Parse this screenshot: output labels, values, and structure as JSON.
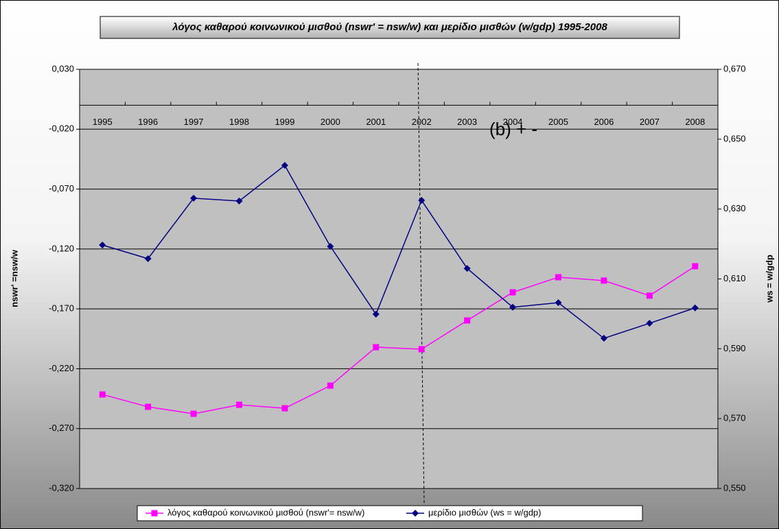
{
  "chart_data": {
    "type": "line",
    "title": "λόγος καθαρού κοινωνικού μισθού (nswr' = nsw/w) και μερίδιο μισθών (w/gdp) 1995-2008",
    "y_label": "nswr' =nsw/w",
    "y2_label": "ws = w/gdp",
    "annotation": "(b) + -",
    "categories": [
      "1995",
      "1996",
      "1997",
      "1998",
      "1999",
      "2000",
      "2001",
      "2002",
      "2003",
      "2004",
      "2005",
      "2006",
      "2007",
      "2008"
    ],
    "series": [
      {
        "name": "λόγος καθαρού κοινωνικού μισθού (nswr'= nsw/w)",
        "color": "#ff00ff",
        "marker": "square",
        "values": [
          -0.2415,
          -0.2518,
          -0.2576,
          -0.2501,
          -0.253,
          -0.2341,
          -0.202,
          -0.2037,
          -0.1797,
          -0.1562,
          -0.1436,
          -0.1464,
          -0.159,
          -0.1344
        ]
      },
      {
        "name": "μερίδιο μισθών (ws = w/gdp)",
        "color": "#000080",
        "marker": "diamond",
        "axis": "y2",
        "values": [
          0.6197,
          0.6158,
          0.6331,
          0.6323,
          0.6425,
          0.6193,
          0.5999,
          0.6325,
          0.613,
          0.6019,
          0.6032,
          0.593,
          0.5973,
          0.6017
        ]
      }
    ],
    "ylim": [
      -0.32,
      0.03
    ],
    "yticks": [
      {
        "value": 0.03,
        "label": "0,030"
      },
      {
        "value": -0.02,
        "label": "-0,020"
      },
      {
        "value": -0.07,
        "label": "-0,070"
      },
      {
        "value": -0.12,
        "label": "-0,120"
      },
      {
        "value": -0.17,
        "label": "-0,170"
      },
      {
        "value": -0.22,
        "label": "-0,220"
      },
      {
        "value": -0.27,
        "label": "-0,270"
      },
      {
        "value": -0.32,
        "label": "-0,320"
      }
    ],
    "y2lim": [
      0.55,
      0.67
    ],
    "y2ticks": [
      {
        "value": 0.67,
        "label": "0,670"
      },
      {
        "value": 0.65,
        "label": "0,650"
      },
      {
        "value": 0.63,
        "label": "0,630"
      },
      {
        "value": 0.61,
        "label": "0,610"
      },
      {
        "value": 0.59,
        "label": "0,590"
      },
      {
        "value": 0.57,
        "label": "0,570"
      },
      {
        "value": 0.55,
        "label": "0,550"
      }
    ],
    "grid": true,
    "legend": "bottom"
  }
}
